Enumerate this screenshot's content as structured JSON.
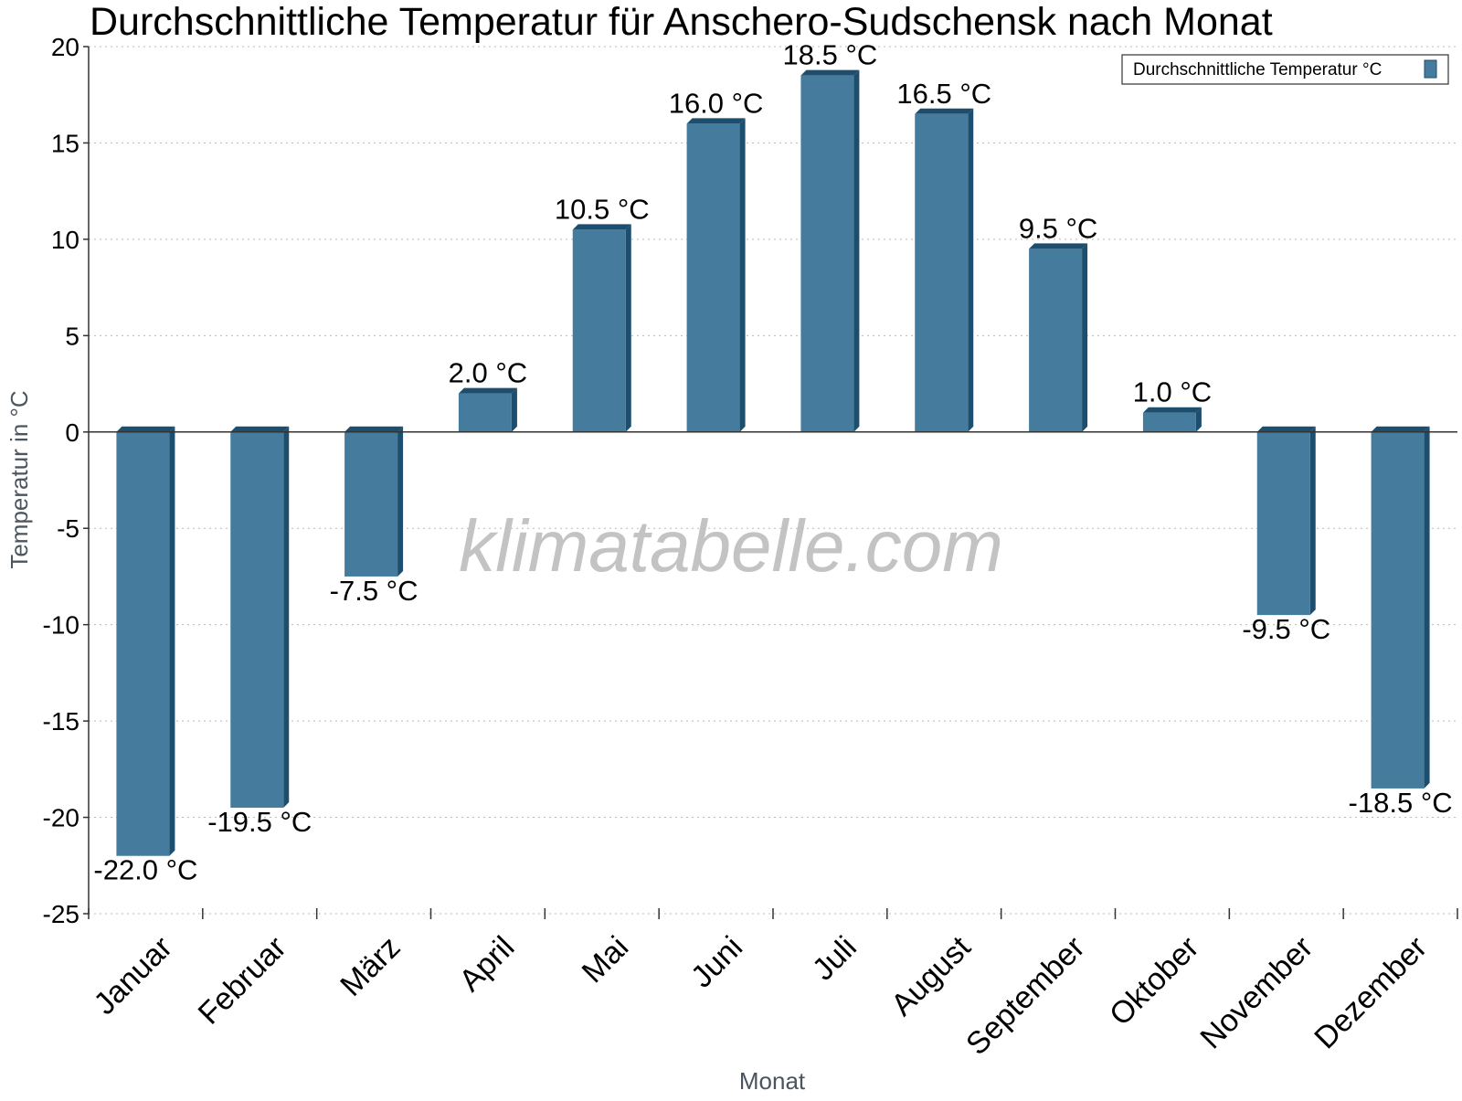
{
  "chart_data": {
    "type": "bar",
    "title": "Durchschnittliche Temperatur für Anschero-Sudschensk nach Monat",
    "xlabel": "Monat",
    "ylabel": "Temperatur in °C",
    "categories": [
      "Januar",
      "Februar",
      "März",
      "April",
      "Mai",
      "Juni",
      "Juli",
      "August",
      "September",
      "Oktober",
      "November",
      "Dezember"
    ],
    "series": [
      {
        "name": "Durchschnittliche Temperatur °C",
        "values": [
          -22.0,
          -19.5,
          -7.5,
          2.0,
          10.5,
          16.0,
          18.5,
          16.5,
          9.5,
          1.0,
          -9.5,
          -18.5
        ],
        "color": "#457b9d"
      }
    ],
    "data_labels": [
      "-22.0 °C",
      "-19.5 °C",
      "-7.5 °C",
      "2.0 °C",
      "10.5 °C",
      "16.0 °C",
      "18.5 °C",
      "16.5 °C",
      "9.5 °C",
      "1.0 °C",
      "-9.5 °C",
      "-18.5 °C"
    ],
    "ylim": [
      -25,
      20
    ],
    "yticks": [
      20,
      15,
      10,
      5,
      0,
      -5,
      -10,
      -15,
      -20,
      -25
    ],
    "grid": true,
    "legend_position": "top-right",
    "watermark": "klimatabelle.com",
    "colors": {
      "bar": "#457b9d",
      "bar_side": "#1d4e6e",
      "grid": "#bbbbbb"
    }
  }
}
